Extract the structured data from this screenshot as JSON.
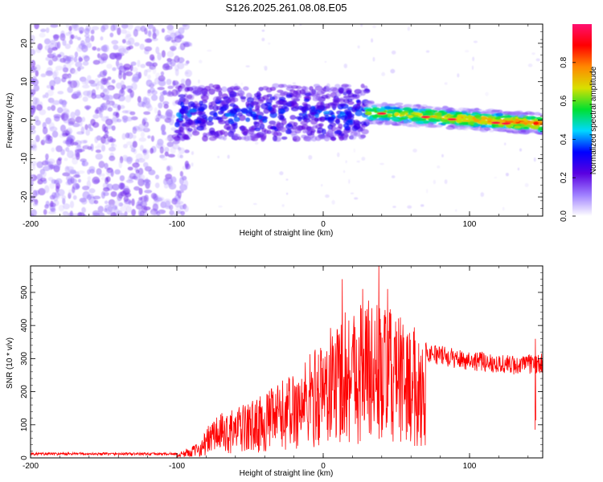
{
  "title": "S126.2025.261.08.08.E05",
  "chart_data": [
    {
      "type": "heatmap",
      "name": "spectrogram",
      "xlabel": "Height of straight line (km)",
      "ylabel": "Frequency (Hz)",
      "xlim": [
        -200,
        150
      ],
      "ylim": [
        -25,
        25
      ],
      "xticks": [
        -200,
        -100,
        0,
        100
      ],
      "yticks": [
        -20,
        -10,
        0,
        10,
        20
      ],
      "colorbar": {
        "label": "Normalized spectral amplitude",
        "range": [
          0,
          1
        ],
        "ticks": [
          0.0,
          0.2,
          0.4,
          0.6,
          0.8
        ],
        "colors": [
          "#ffffff",
          "#9f7fff",
          "#5a00e0",
          "#0000ff",
          "#00d8ff",
          "#00e030",
          "#d8e000",
          "#ff8800",
          "#ff0000",
          "#ff1070"
        ]
      },
      "regions": [
        {
          "x_range": [
            -200,
            -100
          ],
          "freq_range": [
            -25,
            25
          ],
          "amplitude": "0.05-0.2",
          "description_level": "broadband noise"
        },
        {
          "x_range": [
            -100,
            30
          ],
          "freq_range": [
            -5,
            9
          ],
          "amplitude": "0.1-0.4"
        },
        {
          "x_range": [
            30,
            150
          ],
          "freq_center_start": 2,
          "freq_center_end": -1,
          "amplitude": "0.4-0.95"
        }
      ]
    },
    {
      "type": "line",
      "name": "snr",
      "xlabel": "Height of straight line (km)",
      "ylabel": "SNR (10 * v/v)",
      "xlim": [
        -200,
        150
      ],
      "ylim": [
        0,
        580
      ],
      "xticks": [
        -200,
        -100,
        0,
        100
      ],
      "yticks": [
        0,
        100,
        200,
        300,
        400,
        500
      ],
      "color": "#ff0000",
      "envelope_points": [
        {
          "x": -200,
          "y": 12
        },
        {
          "x": -100,
          "y": 12
        },
        {
          "x": -85,
          "y": 40
        },
        {
          "x": -75,
          "y": 110
        },
        {
          "x": -60,
          "y": 130
        },
        {
          "x": -40,
          "y": 170
        },
        {
          "x": -20,
          "y": 230
        },
        {
          "x": 0,
          "y": 320
        },
        {
          "x": 15,
          "y": 400
        },
        {
          "x": 30,
          "y": 430
        },
        {
          "x": 50,
          "y": 380
        },
        {
          "x": 70,
          "y": 320
        },
        {
          "x": 90,
          "y": 300
        },
        {
          "x": 110,
          "y": 290
        },
        {
          "x": 130,
          "y": 280
        },
        {
          "x": 150,
          "y": 285
        }
      ],
      "peak_values": [
        {
          "x": 13,
          "y": 540
        },
        {
          "x": 38,
          "y": 580
        },
        {
          "x": 44,
          "y": 510
        },
        {
          "x": 27,
          "y": 510
        },
        {
          "x": 145,
          "y": 360
        }
      ]
    }
  ]
}
